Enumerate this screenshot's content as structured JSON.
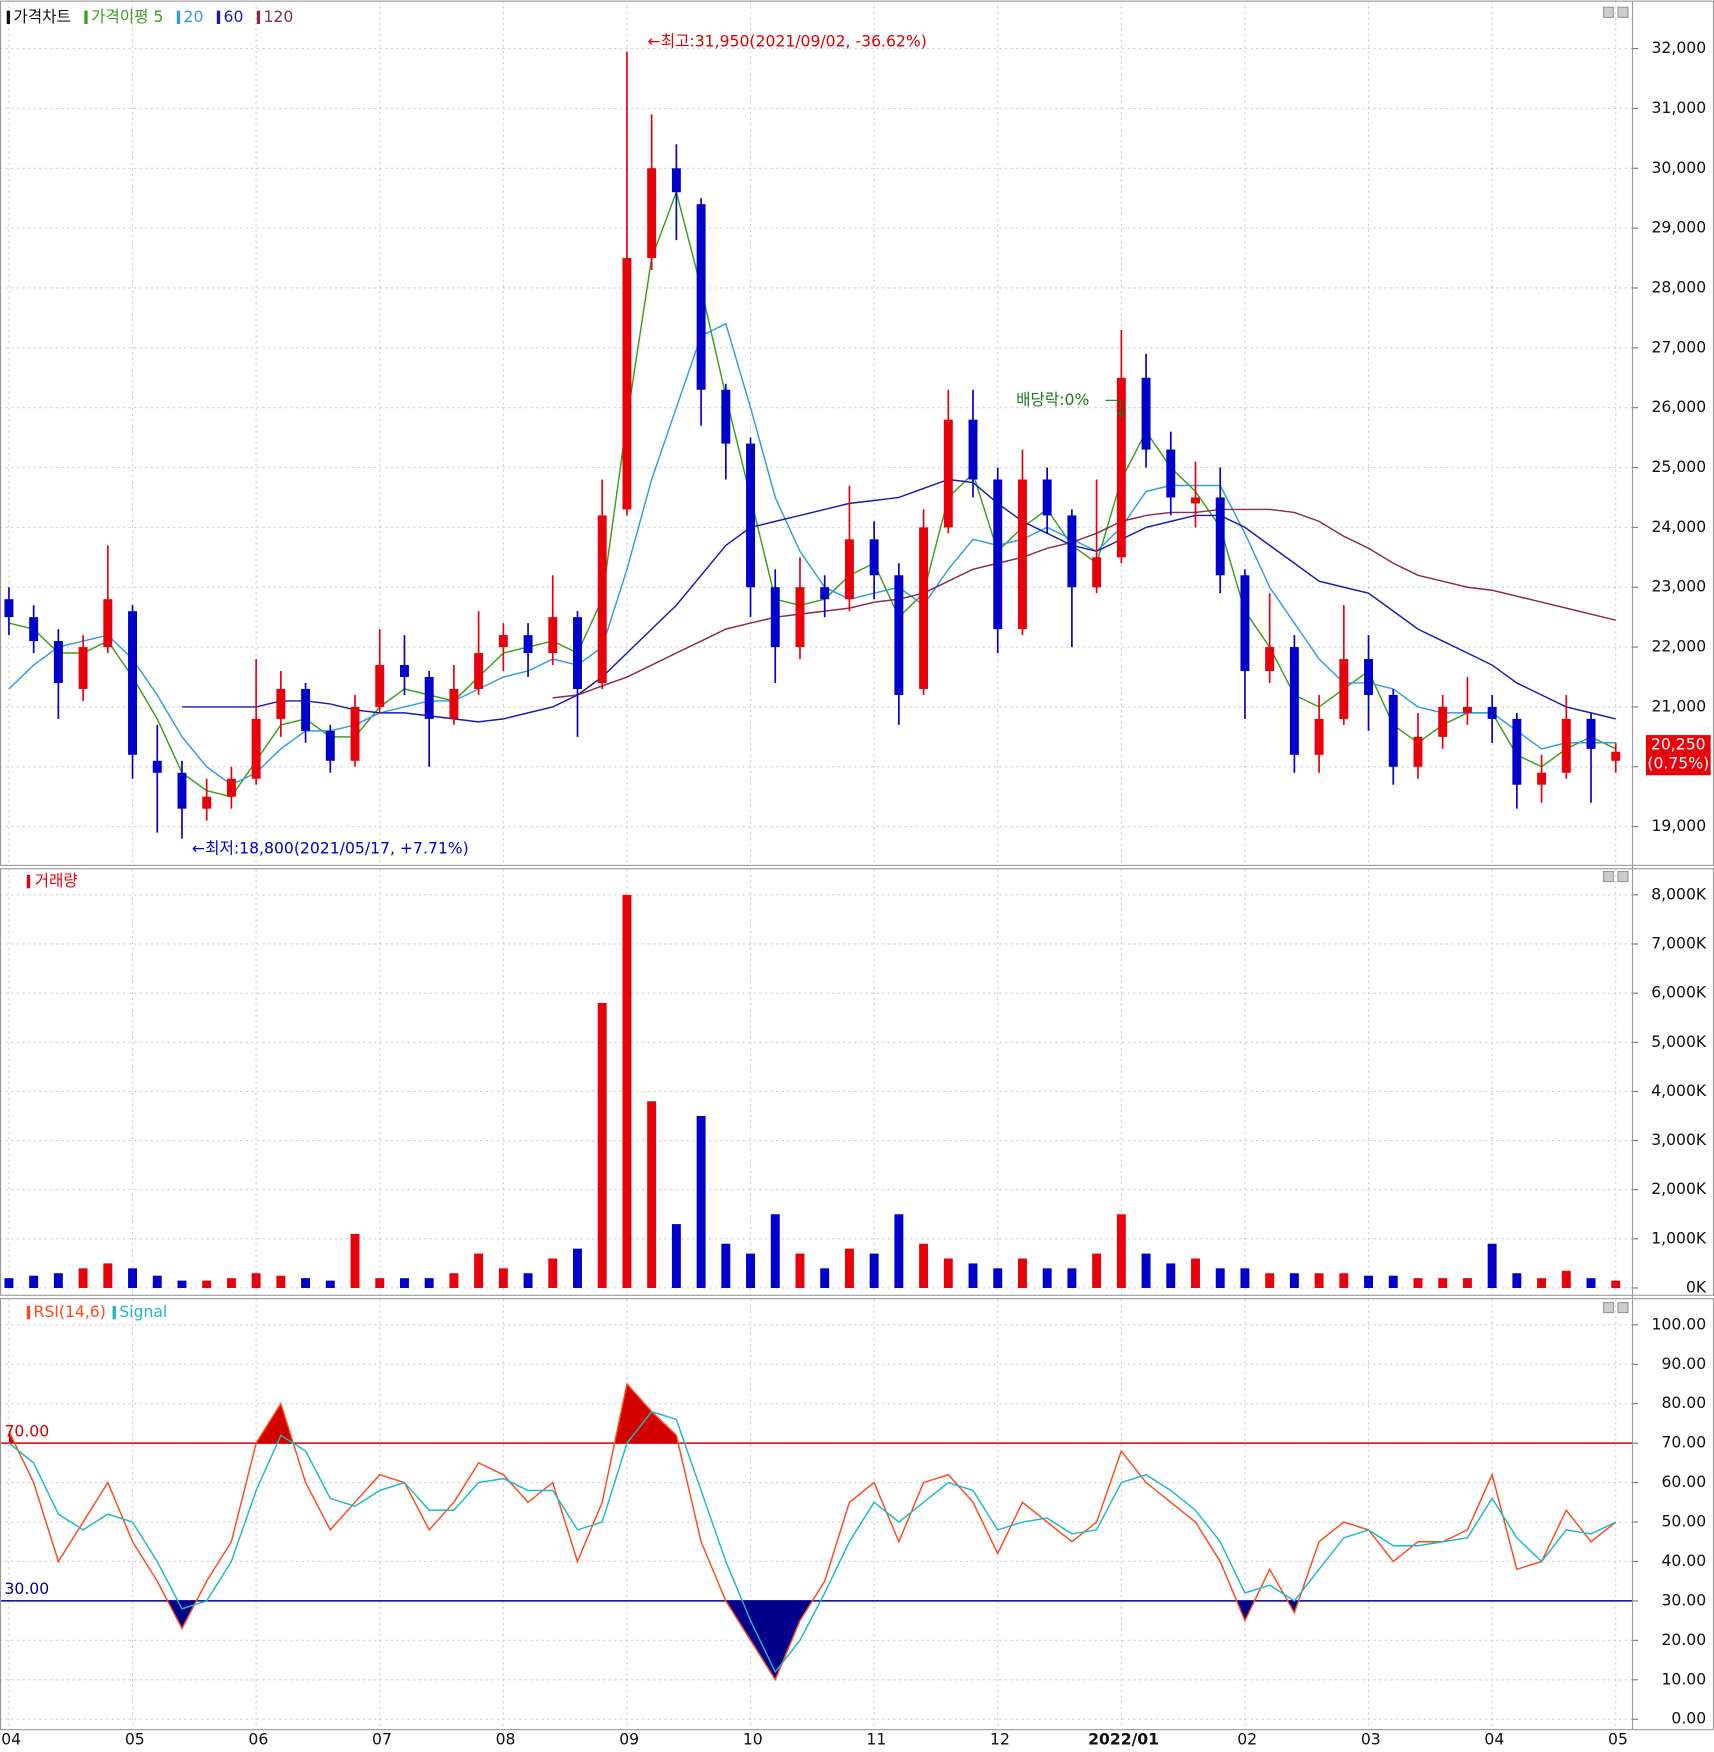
{
  "chart_data": [
    {
      "type": "candlestick",
      "title": "가격차트",
      "categories": [
        "04",
        null,
        null,
        null,
        null,
        "05",
        null,
        null,
        null,
        null,
        "06",
        null,
        null,
        null,
        null,
        "07",
        null,
        null,
        null,
        null,
        "08",
        null,
        null,
        null,
        null,
        "09",
        null,
        null,
        null,
        null,
        "10",
        null,
        null,
        null,
        null,
        "11",
        null,
        null,
        null,
        null,
        "12",
        null,
        null,
        null,
        null,
        "2022/01",
        null,
        null,
        null,
        null,
        "02",
        null,
        null,
        null,
        null,
        "03",
        null,
        null,
        null,
        null,
        "04",
        null,
        null,
        null,
        null,
        "05"
      ],
      "open": [
        22800,
        22500,
        22100,
        21300,
        22000,
        22600,
        20100,
        19900,
        19300,
        19500,
        19800,
        20800,
        21300,
        20600,
        20100,
        21000,
        21700,
        21500,
        20800,
        21300,
        22000,
        22200,
        21900,
        22500,
        21400,
        24300,
        28500,
        30000,
        29400,
        26300,
        25400,
        23000,
        22000,
        23000,
        22800,
        23800,
        23200,
        21300,
        24000,
        25800,
        24800,
        22300,
        24800,
        24200,
        23000,
        23500,
        26500,
        25300,
        24400,
        24500,
        23200,
        21600,
        22000,
        20200,
        20800,
        21800,
        21200,
        20000,
        20500,
        20900,
        21000,
        20800,
        19700,
        19900,
        20800,
        20100
      ],
      "high": [
        23000,
        22700,
        22300,
        22200,
        23700,
        22700,
        20700,
        20100,
        19800,
        20000,
        21800,
        21600,
        21400,
        20700,
        21200,
        22300,
        22200,
        21600,
        21700,
        22600,
        22400,
        22400,
        23200,
        22600,
        24800,
        31950,
        30900,
        30400,
        29500,
        26400,
        25500,
        23300,
        23500,
        23200,
        24700,
        24100,
        23400,
        24300,
        26300,
        26300,
        25000,
        25300,
        25000,
        24300,
        24800,
        27300,
        26900,
        25600,
        25100,
        25000,
        23300,
        22900,
        22200,
        21200,
        22700,
        22200,
        21300,
        20900,
        21200,
        21500,
        21200,
        20900,
        20200,
        21200,
        20900,
        20400
      ],
      "low": [
        22200,
        21900,
        20800,
        21100,
        21900,
        19800,
        18900,
        18800,
        19100,
        19300,
        19700,
        20500,
        20400,
        19900,
        20000,
        20900,
        21200,
        20000,
        20700,
        21200,
        21600,
        21500,
        21700,
        20500,
        21300,
        24200,
        28300,
        28800,
        25700,
        24800,
        22500,
        21400,
        21800,
        22500,
        22600,
        22800,
        20700,
        21200,
        23900,
        24500,
        21900,
        22200,
        23900,
        22000,
        22900,
        23400,
        25000,
        24200,
        24000,
        22900,
        20800,
        21400,
        19900,
        19900,
        20700,
        20600,
        19700,
        19800,
        20300,
        20700,
        20400,
        19300,
        19400,
        19800,
        19400,
        19900
      ],
      "close": [
        22500,
        22100,
        21400,
        22000,
        22800,
        20200,
        19900,
        19300,
        19500,
        19800,
        20800,
        21300,
        20600,
        20100,
        21000,
        21700,
        21500,
        20800,
        21300,
        21900,
        22200,
        21900,
        22500,
        21300,
        24200,
        28500,
        30000,
        29600,
        26300,
        25400,
        23000,
        22000,
        23000,
        22800,
        23800,
        23200,
        21200,
        24000,
        25800,
        24800,
        22300,
        24800,
        24200,
        23000,
        23500,
        26500,
        25300,
        24500,
        24500,
        23200,
        21600,
        22000,
        20200,
        20800,
        21800,
        21200,
        20000,
        20500,
        21000,
        21000,
        20800,
        19700,
        19900,
        20800,
        20300,
        20250
      ],
      "up_color": "#e8000b",
      "down_color": "#0000cc",
      "series": [
        {
          "name": "가격이평 5",
          "color": "#3aa01c",
          "values": [
            22400,
            22300,
            21900,
            21900,
            22100,
            21500,
            20800,
            19900,
            19600,
            19500,
            20100,
            20700,
            20800,
            20500,
            20500,
            21000,
            21300,
            21200,
            21100,
            21500,
            21900,
            22000,
            22100,
            21900,
            22800,
            25800,
            28500,
            29600,
            28000,
            26200,
            24500,
            22800,
            22700,
            22800,
            23200,
            23400,
            22500,
            22900,
            24500,
            24900,
            23600,
            24000,
            24300,
            23700,
            23400,
            24800,
            25600,
            25000,
            24600,
            24000,
            22600,
            22000,
            21200,
            21000,
            21300,
            21600,
            20700,
            20400,
            20700,
            20900,
            20900,
            20200,
            20000,
            20300,
            20500,
            20300
          ]
        },
        {
          "name": "20",
          "color": "#2f9ee0",
          "values": [
            21300,
            21700,
            22000,
            22100,
            22200,
            21800,
            21200,
            20500,
            20000,
            19700,
            19900,
            20300,
            20600,
            20600,
            20700,
            20900,
            21000,
            21100,
            21100,
            21300,
            21500,
            21600,
            21800,
            21700,
            22000,
            23300,
            24800,
            26000,
            27200,
            27400,
            26000,
            24500,
            23600,
            23000,
            22800,
            22900,
            23000,
            22700,
            23300,
            23800,
            23700,
            23800,
            24000,
            23800,
            23600,
            24000,
            24600,
            24700,
            24700,
            24700,
            23900,
            23000,
            22400,
            21800,
            21400,
            21400,
            21300,
            21000,
            20900,
            20900,
            20900,
            20600,
            20300,
            20400,
            20400,
            20400
          ]
        },
        {
          "name": "60",
          "color": "#1a1ab0",
          "values": [
            null,
            null,
            null,
            null,
            null,
            null,
            null,
            21000,
            21000,
            21000,
            21000,
            21100,
            21100,
            21050,
            20950,
            20900,
            20900,
            20850,
            20800,
            20750,
            20800,
            20900,
            21000,
            21200,
            21500,
            21900,
            22300,
            22700,
            23200,
            23700,
            24000,
            24100,
            24200,
            24300,
            24400,
            24450,
            24500,
            24650,
            24800,
            24750,
            24400,
            24100,
            23900,
            23700,
            23600,
            23800,
            24000,
            24100,
            24200,
            24200,
            24000,
            23700,
            23400,
            23100,
            23000,
            22900,
            22600,
            22300,
            22100,
            21900,
            21700,
            21400,
            21200,
            21000,
            20900,
            20800
          ]
        },
        {
          "name": "120",
          "color": "#8b2a4a",
          "values": [
            null,
            null,
            null,
            null,
            null,
            null,
            null,
            null,
            null,
            null,
            null,
            null,
            null,
            null,
            null,
            null,
            null,
            null,
            null,
            null,
            null,
            null,
            21150,
            21200,
            21350,
            21500,
            21700,
            21900,
            22100,
            22300,
            22400,
            22500,
            22550,
            22600,
            22650,
            22750,
            22800,
            22900,
            23100,
            23300,
            23400,
            23500,
            23650,
            23750,
            23900,
            24100,
            24200,
            24250,
            24250,
            24300,
            24300,
            24300,
            24250,
            24100,
            23850,
            23650,
            23400,
            23200,
            23100,
            23000,
            22950,
            22850,
            22750,
            22650,
            22550,
            22450
          ]
        }
      ],
      "ylim": [
        18343,
        32802
      ],
      "yticks": [
        {
          "value": 19000,
          "label": "19,000"
        },
        {
          "value": 20000,
          "label": "20,000"
        },
        {
          "value": 21000,
          "label": "21,000"
        },
        {
          "value": 22000,
          "label": "22,000"
        },
        {
          "value": 23000,
          "label": "23,000"
        },
        {
          "value": 24000,
          "label": "24,000"
        },
        {
          "value": 25000,
          "label": "25,000"
        },
        {
          "value": 26000,
          "label": "26,000"
        },
        {
          "value": 27000,
          "label": "27,000"
        },
        {
          "value": 28000,
          "label": "28,000"
        },
        {
          "value": 29000,
          "label": "29,000"
        },
        {
          "value": 30000,
          "label": "30,000"
        },
        {
          "value": 31000,
          "label": "31,000"
        },
        {
          "value": 32000,
          "label": "32,000"
        }
      ],
      "annotations": [
        "←최고:31,950(2021/09/02, -36.62%)",
        "←최저:18,800(2021/05/17, +7.71%)",
        "배당락:0%"
      ],
      "last_label": "20,250",
      "last_change": "(0.75%)",
      "grid": true
    },
    {
      "type": "bar",
      "title": "거래량",
      "values": [
        200,
        250,
        300,
        400,
        500,
        400,
        250,
        150,
        150,
        200,
        300,
        250,
        200,
        150,
        1100,
        200,
        200,
        200,
        300,
        700,
        400,
        300,
        600,
        800,
        5800,
        8000,
        3800,
        1300,
        3500,
        900,
        700,
        1500,
        700,
        400,
        800,
        700,
        1500,
        900,
        600,
        500,
        400,
        600,
        400,
        400,
        700,
        1500,
        700,
        500,
        600,
        400,
        400,
        300,
        300,
        300,
        300,
        250,
        250,
        200,
        200,
        200,
        900,
        300,
        200,
        350,
        200,
        150
      ],
      "ylim": [
        -160,
        8520
      ],
      "yticks": [
        {
          "value": 0,
          "label": "0K"
        },
        {
          "value": 1000,
          "label": "1,000K"
        },
        {
          "value": 2000,
          "label": "2,000K"
        },
        {
          "value": 3000,
          "label": "3,000K"
        },
        {
          "value": 4000,
          "label": "4,000K"
        },
        {
          "value": 5000,
          "label": "5,000K"
        },
        {
          "value": 6000,
          "label": "6,000K"
        },
        {
          "value": 7000,
          "label": "7,000K"
        },
        {
          "value": 8000,
          "label": "8,000K"
        }
      ],
      "grid": true
    },
    {
      "type": "line",
      "series": [
        {
          "name": "RSI(14,6)",
          "color": "#ff4a1c",
          "values": [
            73,
            60,
            40,
            50,
            60,
            45,
            35,
            23,
            35,
            45,
            70,
            80,
            60,
            48,
            55,
            62,
            60,
            48,
            55,
            65,
            62,
            55,
            60,
            40,
            55,
            85,
            78,
            72,
            45,
            30,
            20,
            10,
            25,
            35,
            55,
            60,
            45,
            60,
            62,
            55,
            42,
            55,
            50,
            45,
            50,
            68,
            60,
            55,
            50,
            40,
            25,
            38,
            27,
            45,
            50,
            48,
            40,
            45,
            45,
            48,
            62,
            38,
            40,
            53,
            45,
            50
          ]
        },
        {
          "name": "Signal",
          "color": "#20b8c8",
          "values": [
            70,
            65,
            52,
            48,
            52,
            50,
            40,
            28,
            30,
            40,
            58,
            72,
            68,
            56,
            54,
            58,
            60,
            53,
            53,
            60,
            61,
            58,
            58,
            48,
            50,
            70,
            78,
            76,
            58,
            40,
            25,
            12,
            20,
            32,
            45,
            55,
            50,
            55,
            60,
            58,
            48,
            50,
            51,
            47,
            48,
            60,
            62,
            58,
            53,
            45,
            32,
            34,
            30,
            38,
            46,
            48,
            44,
            44,
            45,
            46,
            56,
            46,
            40,
            48,
            47,
            50
          ]
        }
      ],
      "hlines": [
        {
          "value": 70,
          "label": "70.00",
          "color": "#d40000"
        },
        {
          "value": 30,
          "label": "30.00",
          "color": "#00008b"
        }
      ],
      "ylim": [
        -2.5,
        106.5
      ],
      "yticks": [
        {
          "value": 0,
          "label": "0.00"
        },
        {
          "value": 10,
          "label": "10.00"
        },
        {
          "value": 20,
          "label": "20.00"
        },
        {
          "value": 30,
          "label": "30.00"
        },
        {
          "value": 40,
          "label": "40.00"
        },
        {
          "value": 50,
          "label": "50.00"
        },
        {
          "value": 60,
          "label": "60.00"
        },
        {
          "value": 70,
          "label": "70.00"
        },
        {
          "value": 80,
          "label": "80.00"
        },
        {
          "value": 90,
          "label": "90.00"
        },
        {
          "value": 100,
          "label": "100.00"
        }
      ],
      "grid": true
    }
  ]
}
